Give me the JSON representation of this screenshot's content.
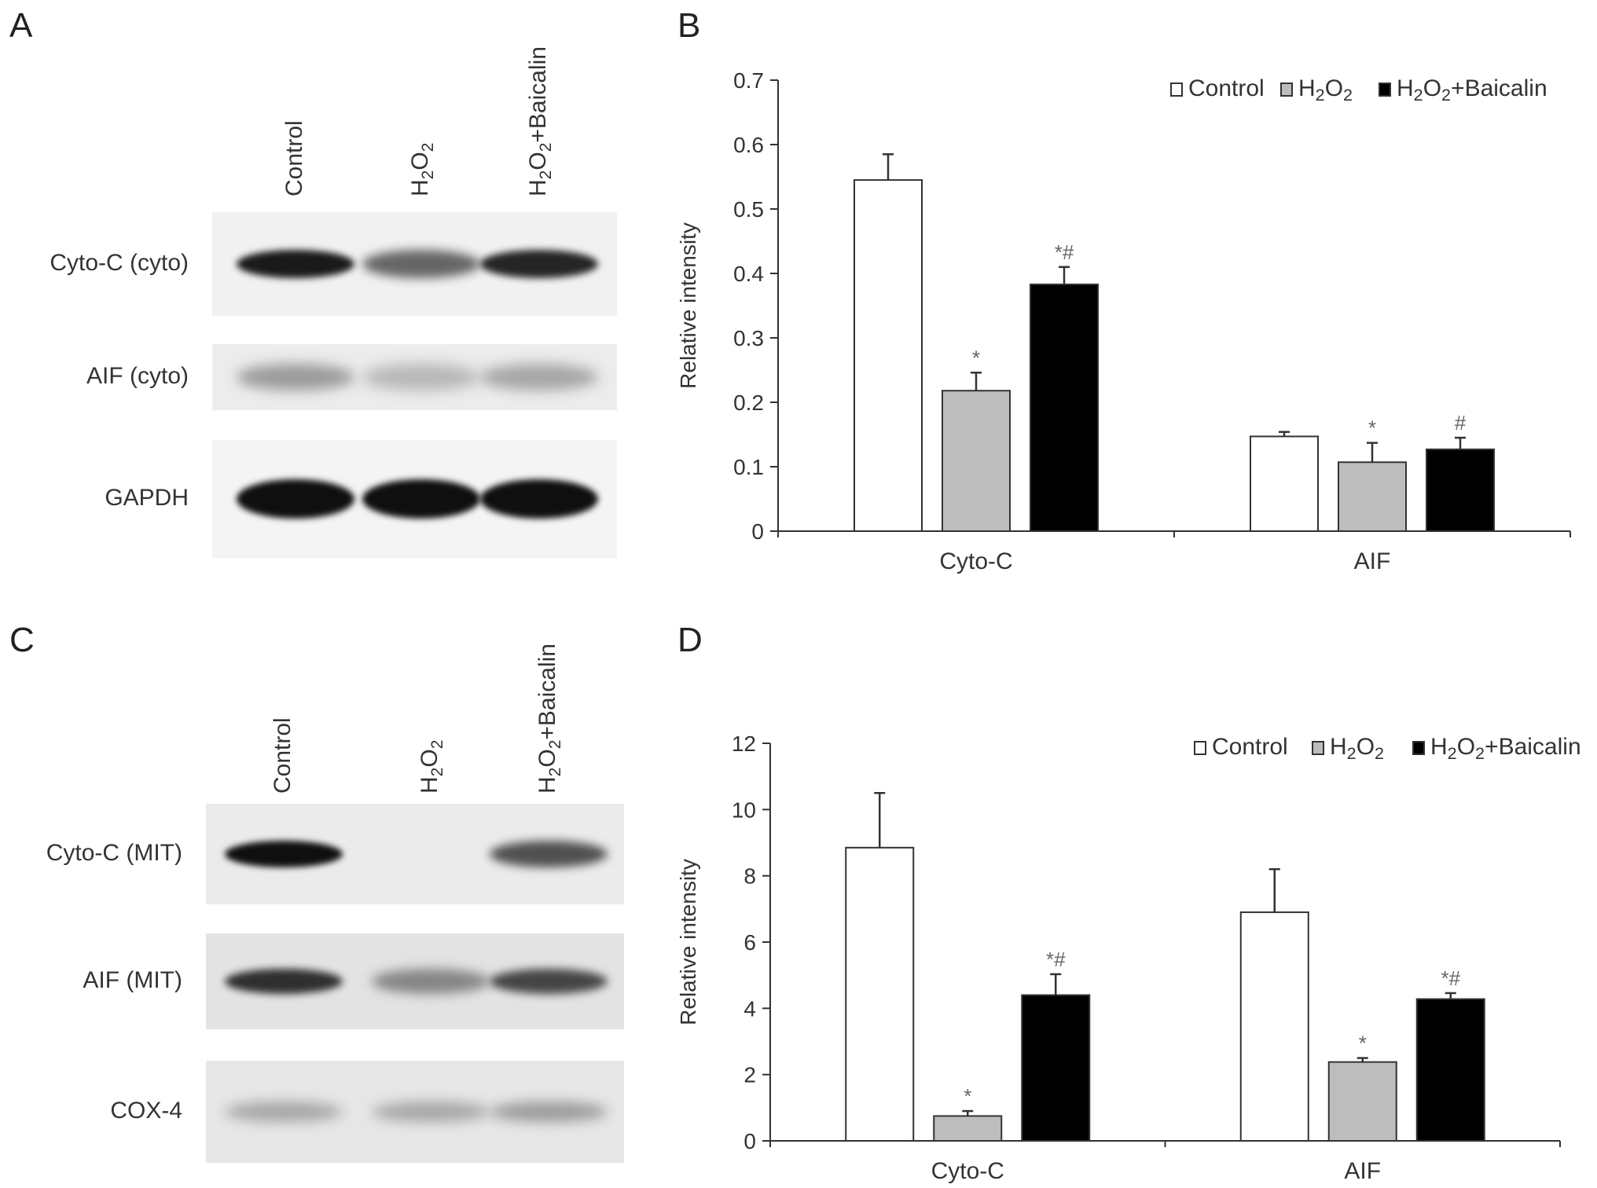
{
  "panels": {
    "A": {
      "letter": "A",
      "lanes": [
        "Control",
        "H2O2",
        "H2O2+Baicalin"
      ],
      "rows": [
        {
          "label": "Cyto-C (cyto)",
          "band_intensity": [
            0.95,
            0.6,
            0.9
          ]
        },
        {
          "label": "AIF (cyto)",
          "band_intensity": [
            0.35,
            0.22,
            0.3
          ]
        },
        {
          "label": "GAPDH",
          "band_intensity": [
            1.0,
            1.0,
            1.0
          ]
        }
      ]
    },
    "C": {
      "letter": "C",
      "lanes": [
        "Control",
        "H2O2",
        "H2O2+Baicalin"
      ],
      "rows": [
        {
          "label": "Cyto-C (MIT)",
          "band_intensity": [
            1.0,
            0.0,
            0.7
          ]
        },
        {
          "label": "AIF (MIT)",
          "band_intensity": [
            0.85,
            0.45,
            0.75
          ]
        },
        {
          "label": "COX-4",
          "band_intensity": [
            0.3,
            0.3,
            0.35
          ]
        }
      ]
    }
  },
  "chart_data": [
    {
      "panel": "B",
      "type": "bar",
      "ylabel": "Relative intensity",
      "ylim": [
        0,
        0.7
      ],
      "yticks": [
        "0",
        "0.1",
        "0.2",
        "0.3",
        "0.4",
        "0.5",
        "0.6",
        "0.7"
      ],
      "categories": [
        "Cyto-C",
        "AIF"
      ],
      "legend_position": "top-right",
      "series": [
        {
          "name": "Control",
          "color": "#ffffff",
          "values": [
            0.545,
            0.147
          ],
          "errors": [
            0.04,
            0.007
          ],
          "annotations": [
            "",
            ""
          ]
        },
        {
          "name": "H2O2",
          "color": "#bdbdbd",
          "values": [
            0.218,
            0.107
          ],
          "errors": [
            0.028,
            0.03
          ],
          "annotations": [
            "*",
            "*"
          ]
        },
        {
          "name": "H2O2+Baicalin",
          "color": "#000000",
          "values": [
            0.383,
            0.127
          ],
          "errors": [
            0.027,
            0.018
          ],
          "annotations": [
            "*#",
            "#"
          ]
        }
      ]
    },
    {
      "panel": "D",
      "type": "bar",
      "ylabel": "Relative intensity",
      "ylim": [
        0,
        12
      ],
      "yticks": [
        "0",
        "2",
        "4",
        "6",
        "8",
        "10",
        "12"
      ],
      "categories": [
        "Cyto-C",
        "AIF"
      ],
      "legend_position": "top-right",
      "series": [
        {
          "name": "Control",
          "color": "#ffffff",
          "values": [
            8.85,
            6.9
          ],
          "errors": [
            1.65,
            1.3
          ],
          "annotations": [
            "",
            ""
          ]
        },
        {
          "name": "H2O2",
          "color": "#bdbdbd",
          "values": [
            0.75,
            2.38
          ],
          "errors": [
            0.15,
            0.12
          ],
          "annotations": [
            "*",
            "*"
          ]
        },
        {
          "name": "H2O2+Baicalin",
          "color": "#000000",
          "values": [
            4.4,
            4.28
          ],
          "errors": [
            0.63,
            0.18
          ],
          "annotations": [
            "*#",
            "*#"
          ]
        }
      ]
    }
  ]
}
